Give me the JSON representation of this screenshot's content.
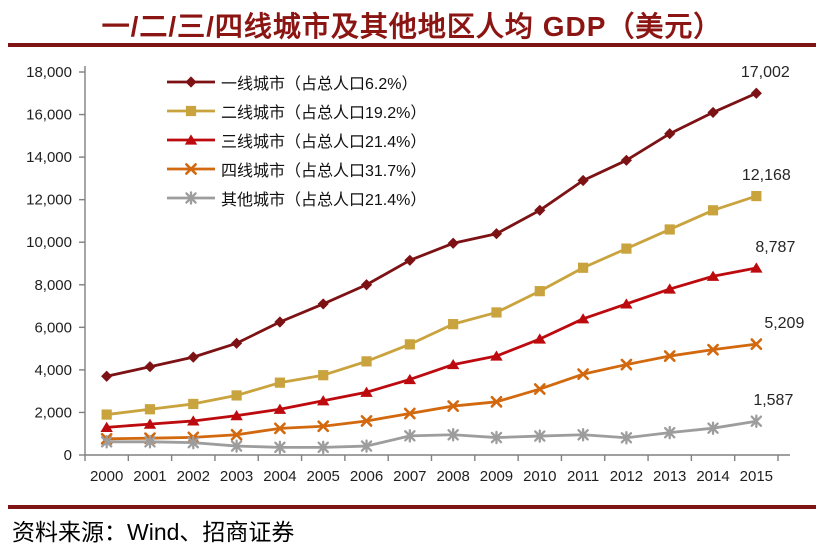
{
  "title": "一/二/三/四线城市及其他地区人均 GDP（美元）",
  "source_note": "资料来源：Wind、招商证券",
  "colors": {
    "title_text": "#8B1512",
    "divider": "#7F1416",
    "axis": "#808080",
    "tick_text": "#1F1F1F",
    "end_label_text": "#262626"
  },
  "chart_data": {
    "type": "line",
    "title": "一/二/三/四线城市及其他地区人均 GDP（美元）",
    "x_labels": [
      "2000",
      "2001",
      "2002",
      "2003",
      "2004",
      "2005",
      "2006",
      "2007",
      "2008",
      "2009",
      "2010",
      "2011",
      "2012",
      "2013",
      "2014",
      "2015"
    ],
    "ylim": [
      0,
      18000
    ],
    "y_tick_step": 2000,
    "y_tick_labels": [
      "0",
      "2,000",
      "4,000",
      "6,000",
      "8,000",
      "10,000",
      "12,000",
      "14,000",
      "16,000",
      "18,000"
    ],
    "grid": false,
    "legend_position": "upper-left",
    "series": [
      {
        "name": "一线城市（占总人口6.2%）",
        "marker": "diamond",
        "color": "#7D1215",
        "end_label": "17,002",
        "values": [
          3700,
          4150,
          4600,
          5250,
          6250,
          7100,
          8000,
          9150,
          9950,
          10400,
          11500,
          12900,
          13850,
          15100,
          16100,
          17002
        ]
      },
      {
        "name": "二线城市（占总人口19.2%）",
        "marker": "square",
        "color": "#C9A33D",
        "end_label": "12,168",
        "values": [
          1900,
          2150,
          2400,
          2800,
          3400,
          3750,
          4400,
          5200,
          6150,
          6700,
          7700,
          8800,
          9700,
          10600,
          11500,
          12168
        ]
      },
      {
        "name": "三线城市（占总人口21.4%）",
        "marker": "triangle",
        "color": "#BD0A0E",
        "end_label": "8,787",
        "values": [
          1300,
          1450,
          1600,
          1850,
          2150,
          2550,
          2950,
          3550,
          4250,
          4650,
          5450,
          6400,
          7100,
          7800,
          8400,
          8787
        ]
      },
      {
        "name": "四线城市（占总人口31.7%）",
        "marker": "x",
        "color": "#D2690F",
        "end_label": "5,209",
        "values": [
          760,
          790,
          830,
          950,
          1250,
          1350,
          1600,
          1950,
          2300,
          2500,
          3100,
          3800,
          4250,
          4650,
          4950,
          5209
        ]
      },
      {
        "name": "其他城市（占总人口21.4%）",
        "marker": "asterisk",
        "color": "#9D9D9D",
        "end_label": "1,587",
        "values": [
          620,
          620,
          580,
          420,
          360,
          360,
          420,
          900,
          950,
          820,
          890,
          950,
          810,
          1050,
          1260,
          1587
        ]
      }
    ]
  }
}
